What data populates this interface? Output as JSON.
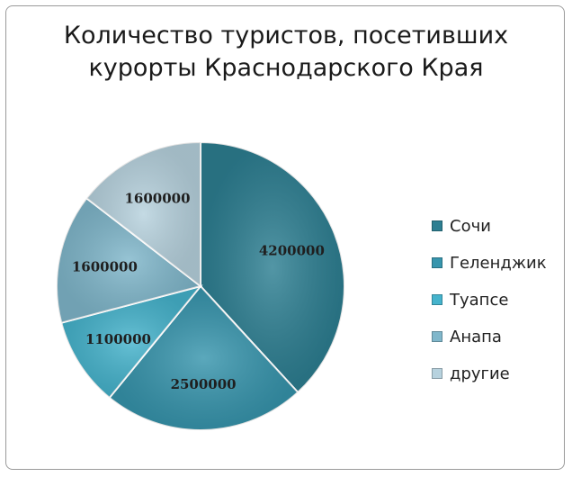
{
  "chart_data": {
    "type": "pie",
    "title": "Количество туристов, посетивших курорты Краснодарского Края",
    "title_lines": [
      "Количество туристов, посетивших",
      "курорты Краснодарского Края"
    ],
    "legend_position": "right",
    "series": [
      {
        "name": "Сочи",
        "value": 4200000,
        "label": "4200000",
        "color": "#2d7f92"
      },
      {
        "name": "Геленджик",
        "value": 2500000,
        "label": "2500000",
        "color": "#3795ad"
      },
      {
        "name": "Туапсе",
        "value": 1100000,
        "label": "1100000",
        "color": "#45b3cc"
      },
      {
        "name": "Анапа",
        "value": 1600000,
        "label": "1600000",
        "color": "#80b7cb"
      },
      {
        "name": "другие",
        "value": 1600000,
        "label": "1600000",
        "color": "#b7d2de"
      }
    ]
  }
}
